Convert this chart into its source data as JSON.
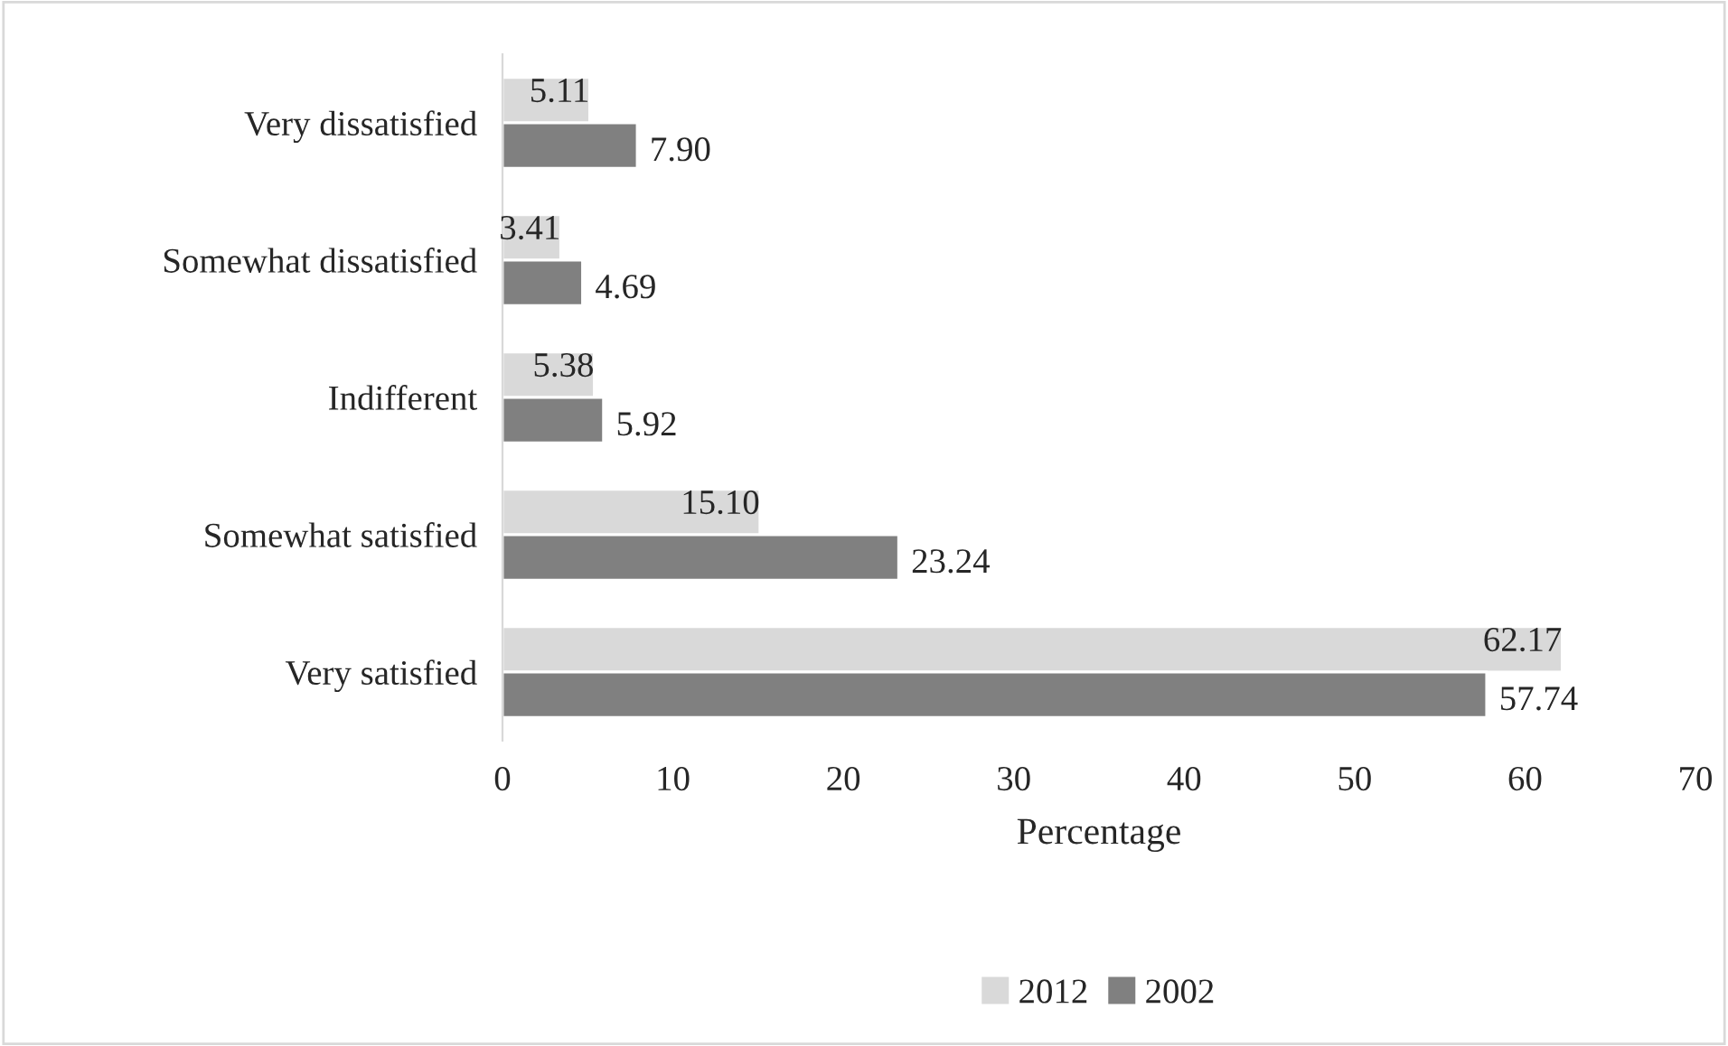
{
  "chart_data": {
    "type": "bar",
    "orientation": "horizontal",
    "xlabel": "Percentage",
    "categories": [
      "Very dissatisfied",
      "Somewhat dissatisfied",
      "Indifferent",
      "Somewhat satisfied",
      "Very satisfied"
    ],
    "series": [
      {
        "name": "2012",
        "color": "#d9d9d9",
        "values": [
          5.11,
          3.41,
          5.38,
          15.1,
          62.17
        ],
        "value_labels": [
          "5.11",
          "3.41",
          "5.38",
          "15.10",
          "62.17"
        ]
      },
      {
        "name": "2002",
        "color": "#808080",
        "values": [
          7.9,
          4.69,
          5.92,
          23.24,
          57.74
        ],
        "value_labels": [
          "7.90",
          "4.69",
          "5.92",
          "23.24",
          "57.74"
        ]
      }
    ],
    "xlim": [
      0,
      70
    ],
    "xticks": [
      0,
      10,
      20,
      30,
      40,
      50,
      60,
      70
    ],
    "grid": false,
    "legend": "bottom"
  }
}
